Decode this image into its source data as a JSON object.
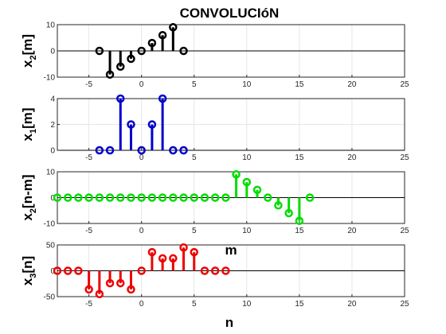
{
  "figure": {
    "title": "CONVOLUCIóN",
    "float_label": "m",
    "bottom_xlabel": "n"
  },
  "chart_data": [
    {
      "type": "stem",
      "ylabel_main": "x",
      "ylabel_sub": "2",
      "ylabel_tail": "[m]",
      "color": "#000000",
      "xlim": [
        -8,
        25
      ],
      "ylim": [
        -10,
        10
      ],
      "xticks": [
        -5,
        0,
        5,
        10,
        15,
        20,
        25
      ],
      "yticks": [
        -10,
        0,
        10
      ],
      "grid": true,
      "x": [
        -4,
        -3,
        -2,
        -1,
        0,
        1,
        2,
        3,
        4
      ],
      "y": [
        0,
        -9,
        -6,
        -3,
        0,
        3,
        6,
        9,
        0
      ]
    },
    {
      "type": "stem",
      "ylabel_main": "x",
      "ylabel_sub": "1",
      "ylabel_tail": "[m]",
      "color": "#0000cc",
      "xlim": [
        -8,
        25
      ],
      "ylim": [
        0,
        4
      ],
      "xticks": [
        -5,
        0,
        5,
        10,
        15,
        20,
        25
      ],
      "yticks": [
        0,
        2,
        4
      ],
      "grid": true,
      "x": [
        -4,
        -3,
        -2,
        -1,
        0,
        1,
        2,
        3,
        4
      ],
      "y": [
        0,
        0,
        4,
        2,
        0,
        2,
        4,
        0,
        0
      ]
    },
    {
      "type": "stem",
      "ylabel_main": "x",
      "ylabel_sub": "2",
      "ylabel_tail": "[n-m]",
      "color": "#00dd00",
      "xlim": [
        -8,
        25
      ],
      "ylim": [
        -10,
        10
      ],
      "xticks": [
        -5,
        0,
        5,
        10,
        15,
        20,
        25
      ],
      "yticks": [
        -10,
        0,
        10
      ],
      "grid": true,
      "x": [
        -8,
        -7,
        -6,
        -5,
        -4,
        -3,
        -2,
        -1,
        0,
        1,
        2,
        3,
        4,
        5,
        6,
        7,
        8,
        9,
        10,
        11,
        12,
        13,
        14,
        15,
        16
      ],
      "y": [
        0,
        0,
        0,
        0,
        0,
        0,
        0,
        0,
        0,
        0,
        0,
        0,
        0,
        0,
        0,
        0,
        0,
        9,
        6,
        3,
        0,
        -3,
        -6,
        -9,
        0
      ]
    },
    {
      "type": "stem",
      "ylabel_main": "x",
      "ylabel_sub": "3",
      "ylabel_tail": "[n]",
      "color": "#ee0000",
      "xlim": [
        -8,
        25
      ],
      "ylim": [
        -50,
        50
      ],
      "xticks": [
        -5,
        0,
        5,
        10,
        15,
        20,
        25
      ],
      "yticks": [
        -50,
        0,
        50
      ],
      "grid": true,
      "x": [
        -8,
        -7,
        -6,
        -5,
        -4,
        -3,
        -2,
        -1,
        0,
        1,
        2,
        3,
        4,
        5,
        6,
        7,
        8
      ],
      "y": [
        0,
        0,
        0,
        -36,
        -45,
        -24,
        -24,
        -36,
        0,
        36,
        24,
        24,
        45,
        36,
        0,
        0,
        0
      ]
    }
  ]
}
